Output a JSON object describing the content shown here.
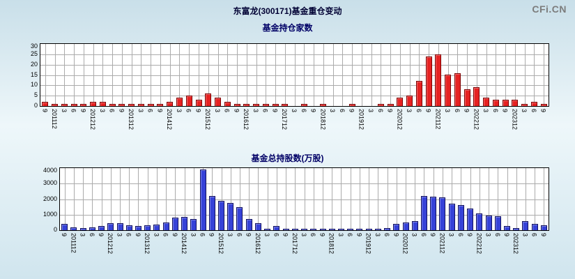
{
  "header": {
    "title": "东富龙(300171)基金重仓变动",
    "logo": "CFi.CN"
  },
  "colors": {
    "background_top": "#c9dfe9",
    "background_mid": "#eef7fa",
    "background_bottom": "#d0e5ee",
    "plot_background": "#ffffff",
    "grid": "#ababab",
    "title": "#000066",
    "red_bar": "#e62222",
    "red_bar_border": "#7d0000",
    "blue_bar": "#3642d8",
    "blue_bar_border": "#101060"
  },
  "chart_data": [
    {
      "type": "bar",
      "title": "基金持仓家数",
      "xlabel": "",
      "ylabel": "",
      "ylim": [
        0,
        30
      ],
      "yticks": [
        0,
        5,
        10,
        15,
        20,
        25,
        30
      ],
      "grid": true,
      "legend_position": "none",
      "bar_color": "#e62222",
      "bar_border": "#7d0000",
      "categories": [
        "9",
        "201112",
        "3",
        "6",
        "9",
        "201212",
        "3",
        "6",
        "9",
        "201312",
        "3",
        "6",
        "9",
        "201412",
        "3",
        "6",
        "9",
        "201512",
        "3",
        "6",
        "9",
        "201612",
        "3",
        "6",
        "9",
        "201712",
        "3",
        "6",
        "9",
        "201812",
        "3",
        "6",
        "9",
        "201912",
        "3",
        "6",
        "9",
        "202012",
        "3",
        "6",
        "9",
        "202112",
        "3",
        "6",
        "9",
        "202212",
        "3",
        "6",
        "9",
        "202312",
        "3",
        "6",
        "9"
      ],
      "values": [
        2,
        1,
        1,
        1,
        1,
        2,
        2,
        1,
        1,
        1,
        1,
        1,
        1,
        2,
        4,
        5,
        3,
        6,
        4,
        2,
        1,
        1,
        1,
        1,
        1,
        1,
        0,
        1,
        0,
        1,
        0,
        0,
        1,
        0,
        0,
        1,
        1,
        4,
        5,
        12,
        24,
        25,
        15,
        16,
        8,
        9,
        4,
        3,
        3,
        3,
        1,
        2,
        1
      ]
    },
    {
      "type": "bar",
      "title": "基金总持股数(万股)",
      "xlabel": "",
      "ylabel": "",
      "ylim": [
        0,
        4000
      ],
      "yticks": [
        0,
        1000,
        2000,
        3000,
        4000
      ],
      "grid": true,
      "legend_position": "none",
      "bar_color": "#3642d8",
      "bar_border": "#101060",
      "categories": [
        "9",
        "201112",
        "3",
        "6",
        "9",
        "201212",
        "3",
        "6",
        "9",
        "201312",
        "3",
        "6",
        "9",
        "201412",
        "3",
        "6",
        "9",
        "201512",
        "3",
        "6",
        "9",
        "201612",
        "3",
        "6",
        "9",
        "201712",
        "3",
        "6",
        "9",
        "201812",
        "3",
        "6",
        "9",
        "201912",
        "3",
        "6",
        "9",
        "202012",
        "3",
        "6",
        "9",
        "202112",
        "3",
        "6",
        "9",
        "202212",
        "3",
        "6",
        "9",
        "202312",
        "3",
        "6",
        "9"
      ],
      "values": [
        400,
        200,
        150,
        200,
        250,
        450,
        450,
        300,
        250,
        300,
        350,
        500,
        800,
        850,
        700,
        3900,
        2200,
        1900,
        1750,
        1500,
        700,
        450,
        100,
        250,
        50,
        100,
        50,
        100,
        50,
        50,
        50,
        50,
        100,
        50,
        50,
        150,
        400,
        500,
        600,
        2200,
        2150,
        2100,
        1700,
        1600,
        1400,
        1100,
        950,
        900,
        250,
        150,
        600,
        400,
        300
      ]
    }
  ]
}
